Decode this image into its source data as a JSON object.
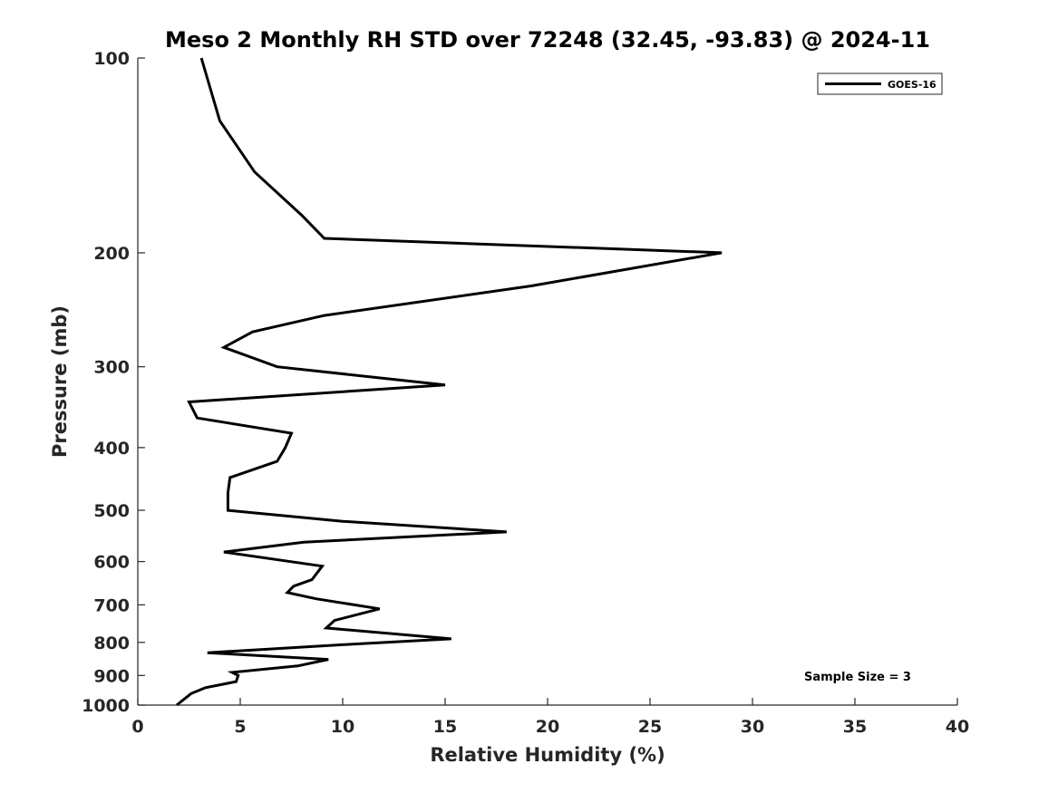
{
  "chart_data": {
    "type": "line",
    "title": "Meso 2 Monthly RH STD over 72248 (32.45, -93.83) @ 2024-11",
    "xlabel": "Relative Humidity (%)",
    "ylabel": "Pressure (mb)",
    "xlim": [
      0,
      40
    ],
    "ylim": [
      100,
      1000
    ],
    "yscale": "log",
    "y_reversed": true,
    "xticks": [
      0,
      5,
      10,
      15,
      20,
      25,
      30,
      35,
      40
    ],
    "yticks": [
      100,
      200,
      300,
      400,
      500,
      600,
      700,
      800,
      900,
      1000
    ],
    "grid": false,
    "legend_position": "top-right",
    "annotation": "Sample Size = 3",
    "series": [
      {
        "name": "GOES-16",
        "color": "#000000",
        "x": [
          3.1,
          4.0,
          5.7,
          8.0,
          9.1,
          28.5,
          19.2,
          9.1,
          5.6,
          4.2,
          6.8,
          15.0,
          2.5,
          2.9,
          7.5,
          7.2,
          6.8,
          4.5,
          4.4,
          4.4,
          10.0,
          18.0,
          8.1,
          4.2,
          9.0,
          8.5,
          7.6,
          7.3,
          8.7,
          11.8,
          9.6,
          9.2,
          15.3,
          10.5,
          3.4,
          9.3,
          7.8,
          4.6,
          4.9,
          4.8,
          3.3,
          2.6,
          1.9
        ],
        "y": [
          100,
          125,
          150,
          175,
          190,
          200,
          225,
          250,
          265,
          280,
          300,
          320,
          340,
          360,
          380,
          400,
          420,
          445,
          470,
          500,
          520,
          540,
          560,
          580,
          610,
          640,
          655,
          670,
          685,
          710,
          740,
          760,
          790,
          805,
          830,
          850,
          870,
          890,
          900,
          920,
          940,
          960,
          1000
        ]
      }
    ]
  }
}
